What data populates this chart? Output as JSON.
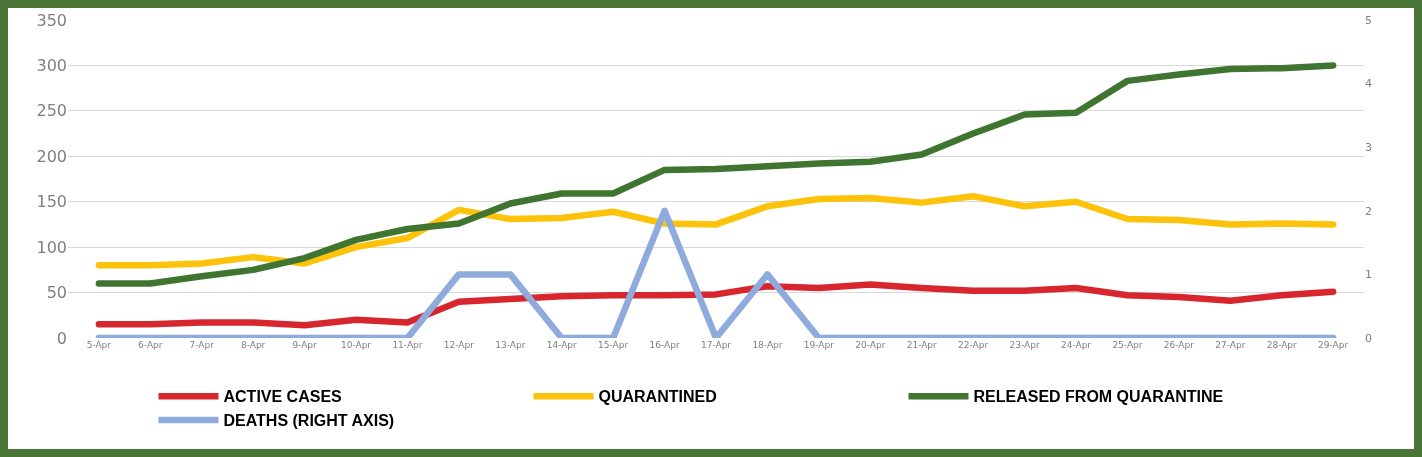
{
  "chart_data": {
    "type": "line",
    "categories": [
      "5-Apr",
      "6-Apr",
      "7-Apr",
      "8-Apr",
      "9-Apr",
      "10-Apr",
      "11-Apr",
      "12-Apr",
      "13-Apr",
      "14-Apr",
      "15-Apr",
      "16-Apr",
      "17-Apr",
      "18-Apr",
      "19-Apr",
      "20-Apr",
      "21-Apr",
      "22-Apr",
      "23-Apr",
      "24-Apr",
      "25-Apr",
      "26-Apr",
      "27-Apr",
      "28-Apr",
      "29-Apr"
    ],
    "series": [
      {
        "name": "ACTIVE CASES",
        "color": "#d7262e",
        "values": [
          15,
          15,
          17,
          17,
          14,
          20,
          17,
          40,
          43,
          46,
          47,
          47,
          48,
          57,
          55,
          59,
          55,
          52,
          52,
          55,
          47,
          45,
          41,
          47,
          51
        ]
      },
      {
        "name": "QUARANTINED",
        "color": "#fdc20a",
        "values": [
          80,
          80,
          82,
          89,
          82,
          100,
          110,
          141,
          131,
          132,
          139,
          126,
          125,
          145,
          153,
          154,
          149,
          156,
          145,
          150,
          131,
          130,
          125,
          126,
          125
        ]
      },
      {
        "name": "RELEASED FROM QUARANTINE",
        "color": "#3f7530",
        "values": [
          60,
          60,
          68,
          75,
          88,
          108,
          120,
          126,
          148,
          159,
          159,
          185,
          186,
          189,
          192,
          194,
          202,
          225,
          246,
          248,
          283,
          290,
          296,
          297,
          300
        ]
      },
      {
        "name": "DEATHS (RIGHT AXIS)",
        "color": "#8faadc",
        "axis": "y2",
        "values": [
          0,
          0,
          0,
          0,
          0,
          0,
          0,
          1,
          1,
          0,
          0,
          2,
          0,
          1,
          0,
          0,
          0,
          0,
          0,
          0,
          0,
          0,
          0,
          0,
          0
        ]
      }
    ],
    "ylim": [
      0,
      350
    ],
    "yticks": [
      0,
      50,
      100,
      150,
      200,
      250,
      300,
      350
    ],
    "y2lim": [
      0,
      5
    ],
    "y2ticks": [
      0,
      1,
      2,
      3,
      4,
      5
    ],
    "grid": "y",
    "legend": "bottom",
    "marker": "none",
    "line_style": "solid"
  }
}
